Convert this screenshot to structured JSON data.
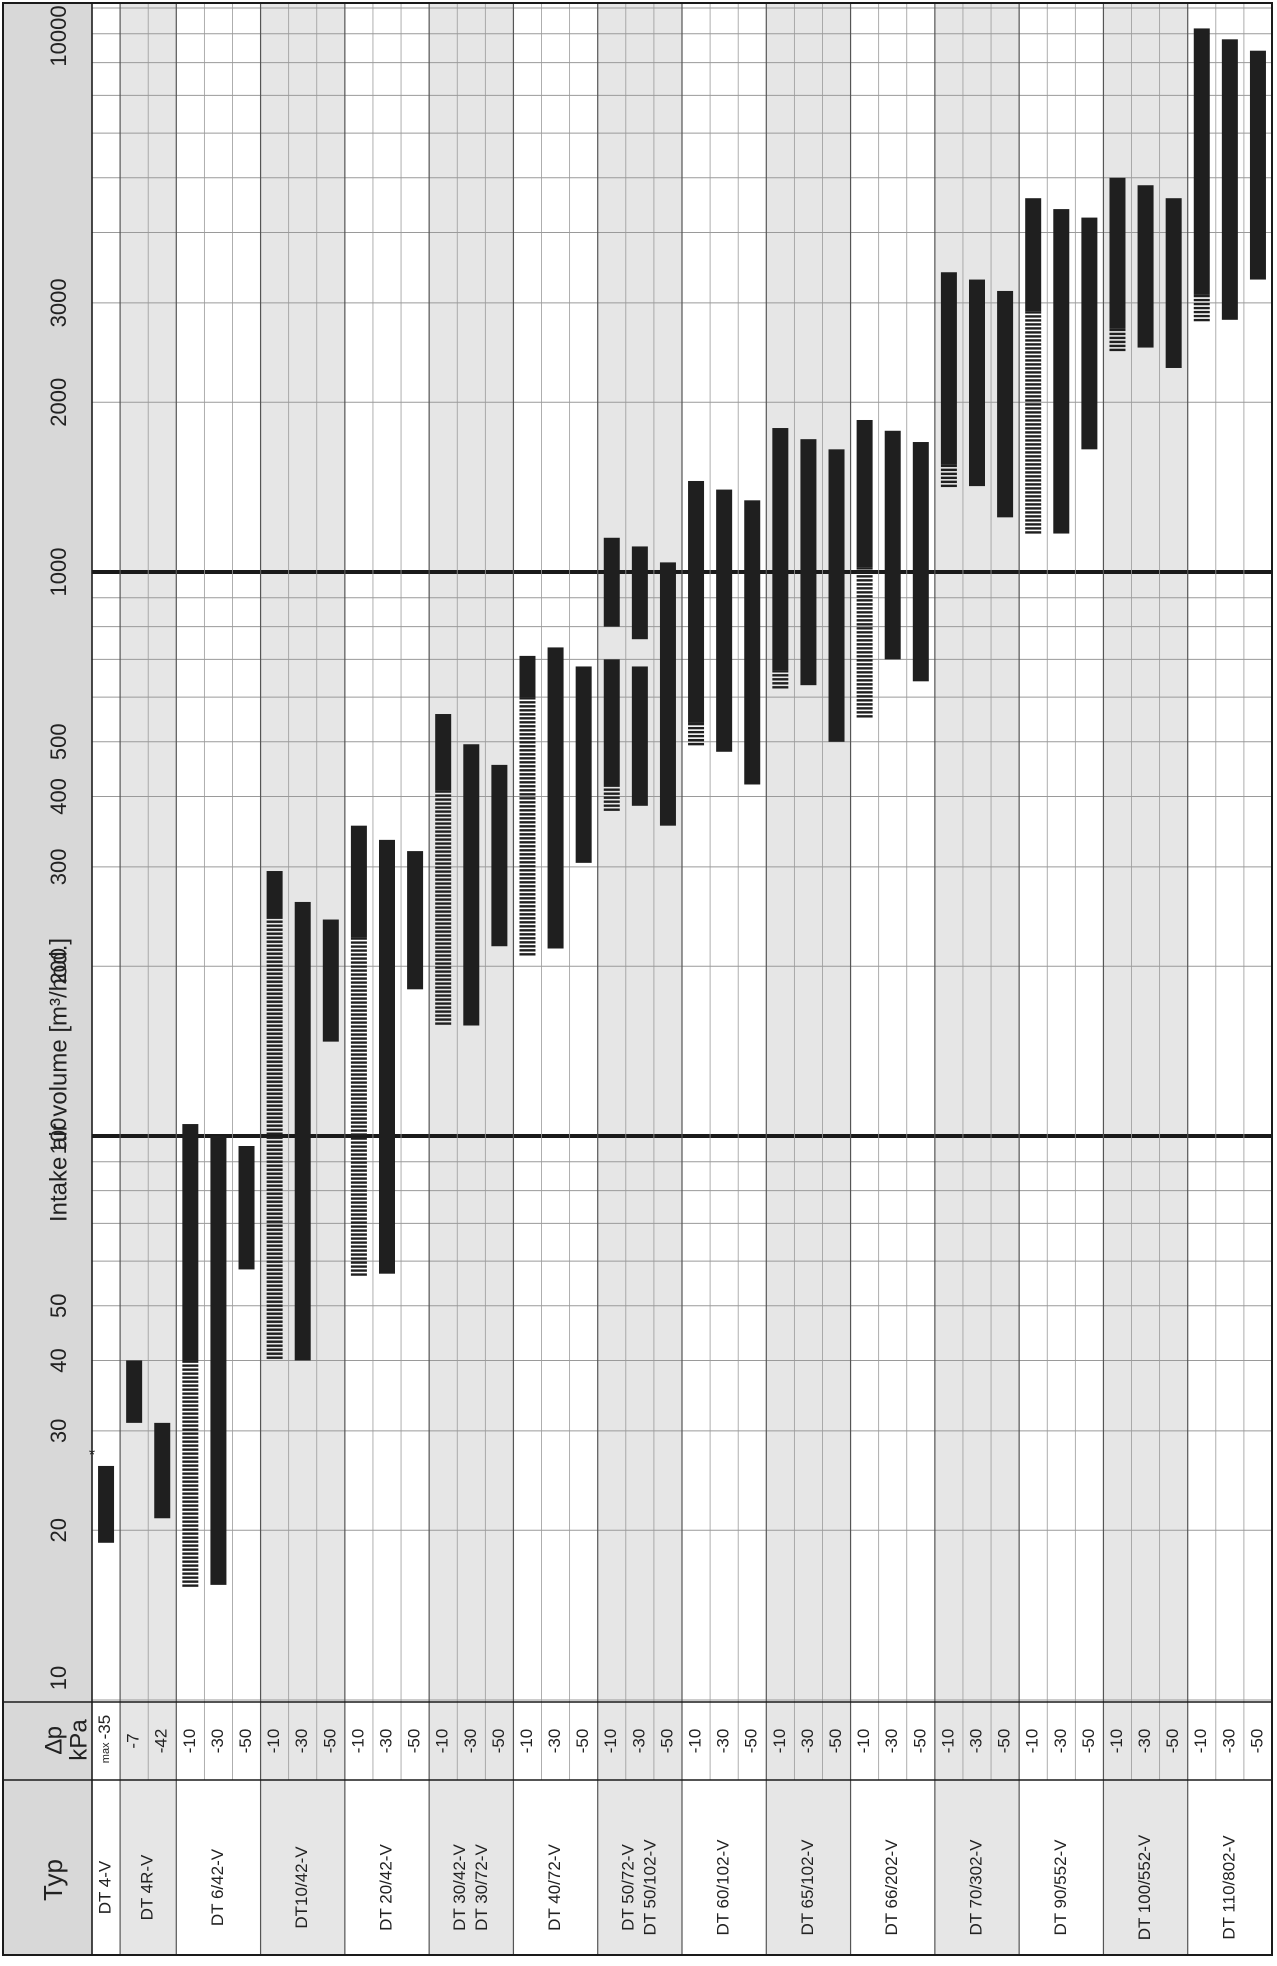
{
  "chart_data": {
    "type": "bar",
    "orientation": "horizontal-range",
    "title": "",
    "xlabel": "Intake air volume [m³/hod.]",
    "x_scale": "log",
    "xlim": [
      10,
      10000
    ],
    "x_ticks": [
      "10",
      "20",
      "30",
      "40",
      "50",
      "100",
      "200",
      "300",
      "400",
      "500",
      "1000",
      "2000",
      "3000",
      "10000"
    ],
    "grid": true,
    "col_headers": {
      "typ": "Typ",
      "dp_line1": "∆p",
      "dp_line2": "kPa"
    },
    "footnote_marker": "*",
    "groups": [
      {
        "name": "DT 4-V",
        "rows": [
          {
            "dp": "-35",
            "dp_prefix": "max",
            "min": 19,
            "max": 26,
            "note": "*"
          }
        ]
      },
      {
        "name": "DT 4R-V",
        "rows": [
          {
            "dp": "-7",
            "min": 31,
            "max": 40
          },
          {
            "dp": "-42",
            "min": 21,
            "max": 31
          }
        ]
      },
      {
        "name": "DT 6/42-V",
        "rows": [
          {
            "dp": "-10",
            "min": 16,
            "max": 105,
            "hatched_to": 40
          },
          {
            "dp": "-30",
            "min": 16,
            "max": 100
          },
          {
            "dp": "-50",
            "min": 58,
            "max": 96
          }
        ]
      },
      {
        "name": "DT10/42-V",
        "rows": [
          {
            "dp": "-10",
            "min": 40,
            "max": 295,
            "hatched_to": 245
          },
          {
            "dp": "-30",
            "min": 40,
            "max": 260
          },
          {
            "dp": "-50",
            "min": 147,
            "max": 242
          }
        ]
      },
      {
        "name": "DT 20/42-V",
        "rows": [
          {
            "dp": "-10",
            "min": 57,
            "max": 355,
            "hatched_to": 225
          },
          {
            "dp": "-30",
            "min": 57,
            "max": 335
          },
          {
            "dp": "-50",
            "min": 182,
            "max": 320
          }
        ]
      },
      {
        "name": "DT 30/42-V",
        "name2": "DT 30/72-V",
        "rows": [
          {
            "dp": "-10",
            "min": 157,
            "max": 560,
            "hatched_to": 410
          },
          {
            "dp": "-30",
            "min": 157,
            "max": 495
          },
          {
            "dp": "-50",
            "min": 217,
            "max": 455
          }
        ]
      },
      {
        "name": "DT 40/72-V",
        "rows": [
          {
            "dp": "-10",
            "min": 210,
            "max": 710,
            "hatched_to": 600
          },
          {
            "dp": "-30",
            "min": 215,
            "max": 735
          },
          {
            "dp": "-50",
            "min": 305,
            "max": 680
          }
        ]
      },
      {
        "name": "DT 50/72-V",
        "name2": "DT 50/102-V",
        "rows": [
          {
            "dp": "-10",
            "min": 375,
            "max": 1150,
            "hatched_to": 420,
            "gap": [
              800,
              700
            ]
          },
          {
            "dp": "-30",
            "min": 385,
            "max": 1110,
            "gap": [
              760,
              680
            ]
          },
          {
            "dp": "-50",
            "min": 355,
            "max": 1040
          }
        ]
      },
      {
        "name": "DT 60/102-V",
        "rows": [
          {
            "dp": "-10",
            "min": 490,
            "max": 1450,
            "hatched_to": 540
          },
          {
            "dp": "-30",
            "min": 480,
            "max": 1400
          },
          {
            "dp": "-50",
            "min": 420,
            "max": 1340
          }
        ]
      },
      {
        "name": "DT 65/102-V",
        "rows": [
          {
            "dp": "-10",
            "min": 620,
            "max": 1800,
            "hatched_to": 670
          },
          {
            "dp": "-30",
            "min": 630,
            "max": 1720
          },
          {
            "dp": "-50",
            "min": 500,
            "max": 1650
          }
        ]
      },
      {
        "name": "DT 66/202-V",
        "rows": [
          {
            "dp": "-10",
            "min": 550,
            "max": 1860,
            "hatched_to": 1020
          },
          {
            "dp": "-30",
            "min": 700,
            "max": 1780
          },
          {
            "dp": "-50",
            "min": 640,
            "max": 1700
          }
        ]
      },
      {
        "name": "DT 70/302-V",
        "rows": [
          {
            "dp": "-10",
            "min": 1420,
            "max": 3400,
            "hatched_to": 1550
          },
          {
            "dp": "-30",
            "min": 1420,
            "max": 3300
          },
          {
            "dp": "-50",
            "min": 1250,
            "max": 3150
          }
        ]
      },
      {
        "name": "DT 90/552-V",
        "rows": [
          {
            "dp": "-10",
            "min": 1180,
            "max": 4600,
            "hatched_to": 2900
          },
          {
            "dp": "-30",
            "min": 1170,
            "max": 4400
          },
          {
            "dp": "-50",
            "min": 1650,
            "max": 4250
          }
        ]
      },
      {
        "name": "DT 100/552-V",
        "rows": [
          {
            "dp": "-10",
            "min": 2450,
            "max": 5000,
            "hatched_to": 2700
          },
          {
            "dp": "-30",
            "min": 2500,
            "max": 4850
          },
          {
            "dp": "-50",
            "min": 2300,
            "max": 4600
          }
        ]
      },
      {
        "name": "DT 110/802-V",
        "rows": [
          {
            "dp": "-10",
            "min": 2800,
            "max": 9200,
            "hatched_to": 3100
          },
          {
            "dp": "-30",
            "min": 2800,
            "max": 8800
          },
          {
            "dp": "-50",
            "min": 3300,
            "max": 8400
          }
        ]
      }
    ]
  },
  "colors": {
    "bar": "#1f1f1f",
    "shade": "#e6e6e6",
    "grid": "#9a9a9a",
    "rule": "#1a1a1a",
    "text": "#222222"
  }
}
